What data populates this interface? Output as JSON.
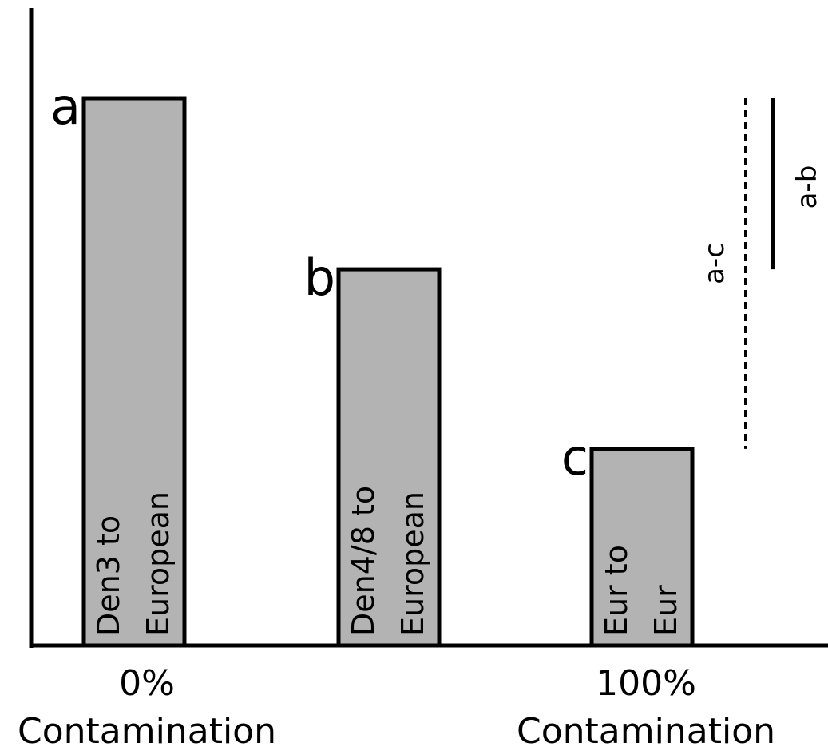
{
  "chart_data": {
    "type": "bar",
    "categories": [
      "a",
      "b",
      "c"
    ],
    "bar_labels": [
      [
        "Den3 to",
        "European"
      ],
      [
        "Den4/8 to",
        "European"
      ],
      [
        "Eur to",
        "Eur"
      ]
    ],
    "values": [
      3.2,
      2.2,
      1.15
    ],
    "ylim": [
      0,
      3.7
    ],
    "grid": false,
    "x_endpoint_labels": [
      [
        "0%",
        "Contamination"
      ],
      [
        "100%",
        "Contamination"
      ]
    ],
    "differences": [
      {
        "label": "a-c",
        "from": "a",
        "to": "c",
        "style": "dashed"
      },
      {
        "label": "a-b",
        "from": "a",
        "to": "b",
        "style": "solid"
      }
    ],
    "colors": {
      "bar_fill": "#b3b3b3",
      "stroke": "#000000"
    }
  }
}
